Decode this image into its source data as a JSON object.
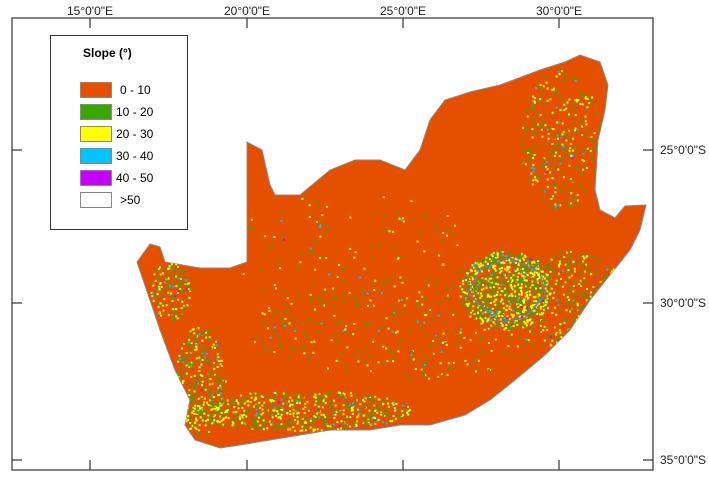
{
  "axes": {
    "top_labels": [
      "15°0'0\"E",
      "20°0'0\"E",
      "25°0'0\"E",
      "30°0'0\"E"
    ],
    "right_labels": [
      "25°0'0\"S",
      "30°0'0\"S",
      "35°0'0\"S"
    ]
  },
  "legend": {
    "title": "Slope (°)",
    "items": [
      {
        "label": "0 - 10",
        "color": "#e45000"
      },
      {
        "label": "10 - 20",
        "color": "#38a800"
      },
      {
        "label": "20 - 30",
        "color": "#ffff00"
      },
      {
        "label": "30 - 40",
        "color": "#00c5ff"
      },
      {
        "label": "40 - 50",
        "color": "#c500ff"
      },
      {
        "label": ">50",
        "color": "#ffffff"
      }
    ]
  }
}
